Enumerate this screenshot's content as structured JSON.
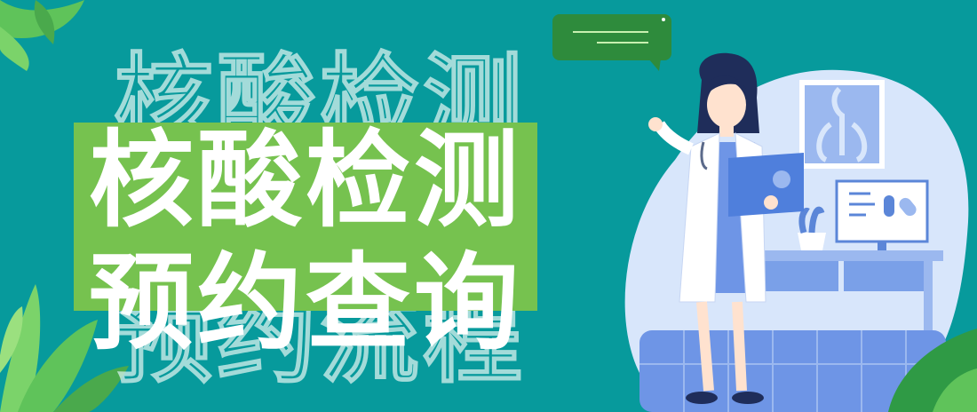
{
  "banner": {
    "title_line1": "核酸检测",
    "title_line2": "预约查询",
    "outline_line1": "核酸检测",
    "outline_line2": "预约流程"
  }
}
